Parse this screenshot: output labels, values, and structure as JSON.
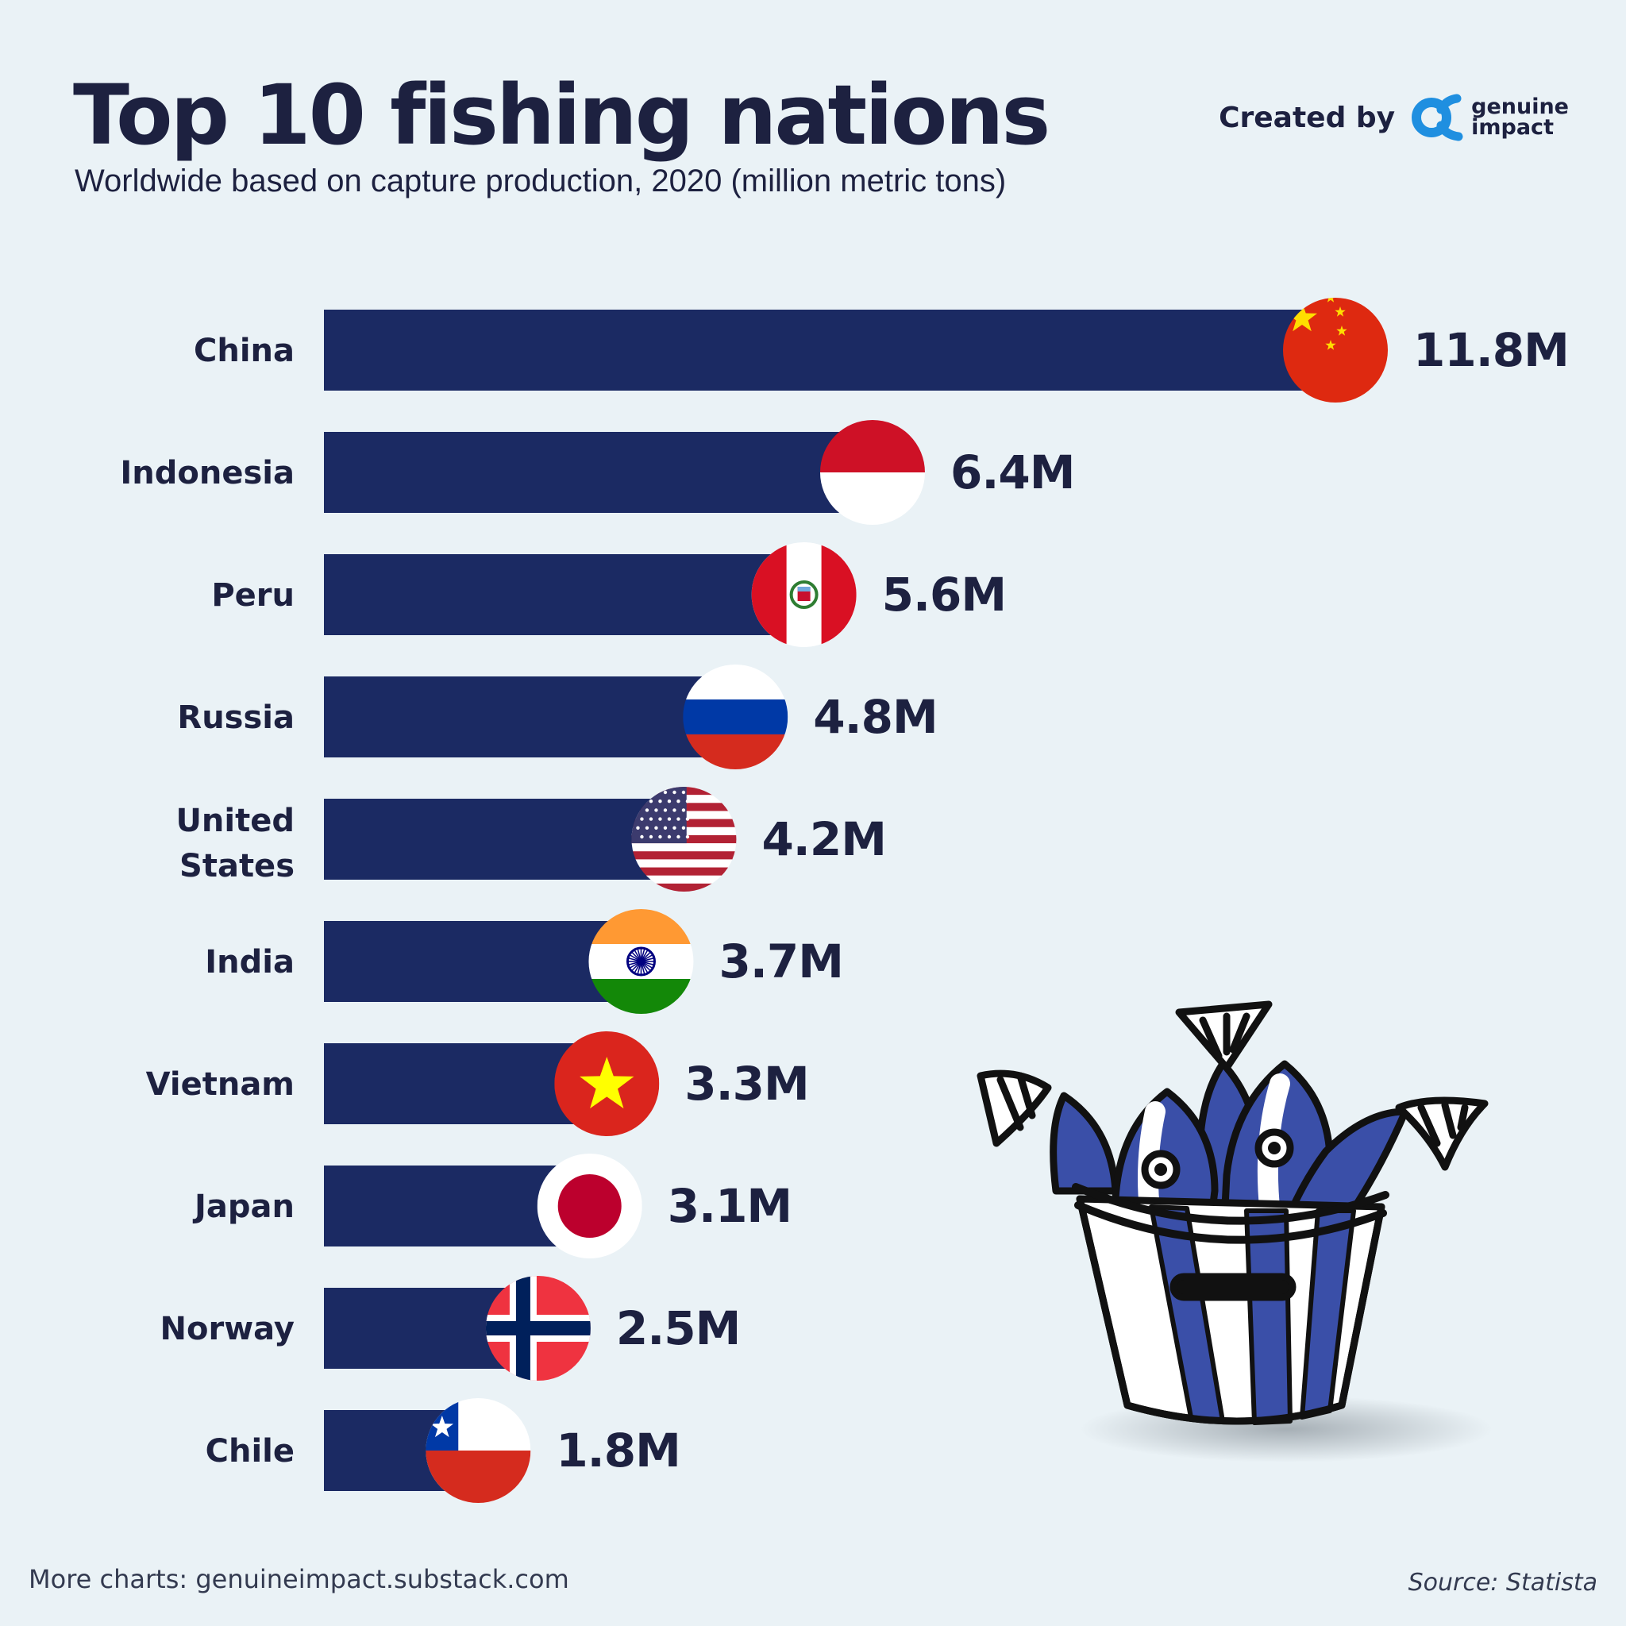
{
  "header": {
    "title": "Top 10 fishing nations",
    "subtitle": "Worldwide based on capture production, 2020 (million metric tons)",
    "credit_label": "Created by",
    "brand_line1": "genuine",
    "brand_line2": "impact"
  },
  "footer": {
    "more_charts": "More charts: genuineimpact.substack.com",
    "source": "Source: Statista"
  },
  "colors": {
    "background": "#eaf2f6",
    "bar": "#1b2a63",
    "text": "#1d2140",
    "brand": "#1f8fe0"
  },
  "illustration": "fish-bucket-icon",
  "chart_data": {
    "type": "bar",
    "orientation": "horizontal",
    "title": "Top 10 fishing nations",
    "subtitle": "Worldwide based on capture production, 2020 (million metric tons)",
    "categories": [
      "China",
      "Indonesia",
      "Peru",
      "Russia",
      "United States",
      "India",
      "Vietnam",
      "Japan",
      "Norway",
      "Chile"
    ],
    "values": [
      11.8,
      6.4,
      5.6,
      4.8,
      4.2,
      3.7,
      3.3,
      3.1,
      2.5,
      1.8
    ],
    "labels": [
      "11.8M",
      "6.4M",
      "5.6M",
      "4.8M",
      "4.2M",
      "3.7M",
      "3.3M",
      "3.1M",
      "2.5M",
      "1.8M"
    ],
    "flags": [
      "china",
      "indonesia",
      "peru",
      "russia",
      "usa",
      "india",
      "vietnam",
      "japan",
      "norway",
      "chile"
    ],
    "grid": false,
    "legend": "none"
  }
}
